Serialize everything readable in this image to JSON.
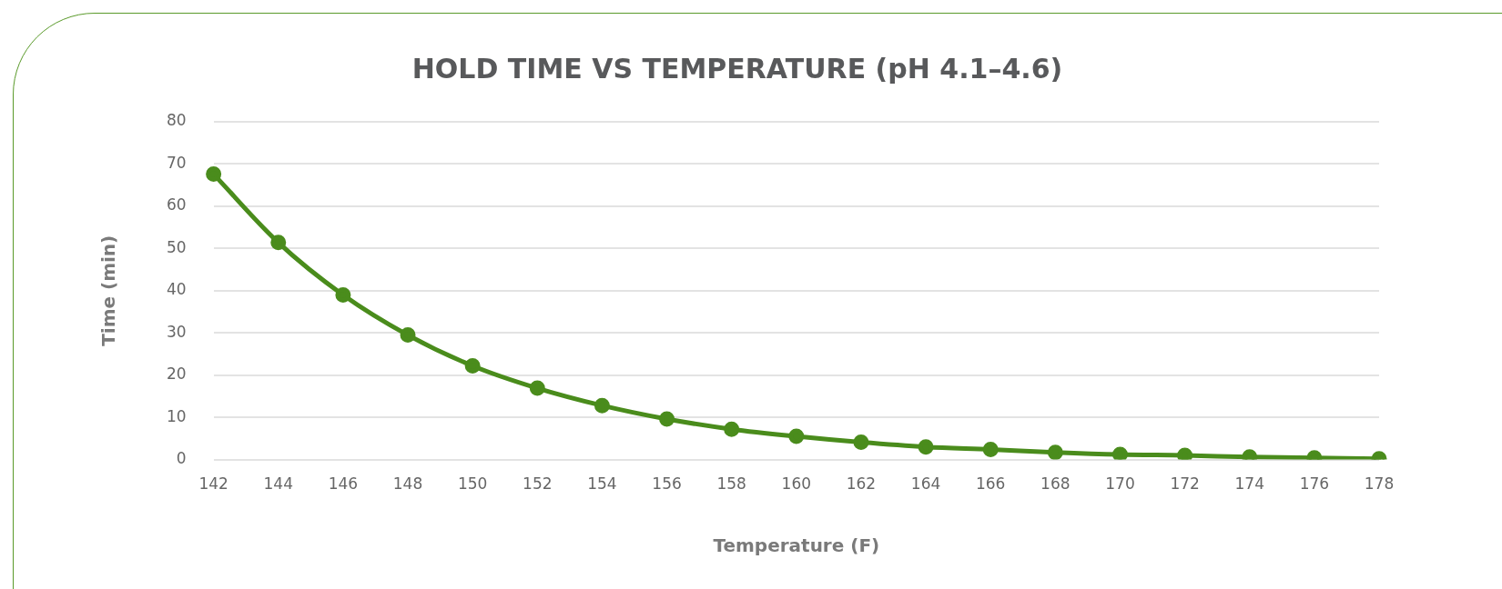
{
  "chart_data": {
    "type": "line",
    "title": "HOLD TIME VS TEMPERATURE (pH 4.1–4.6)",
    "xlabel": "Temperature (F)",
    "ylabel": "Time (min)",
    "categories": [
      "142",
      "144",
      "146",
      "148",
      "150",
      "152",
      "154",
      "156",
      "158",
      "160",
      "162",
      "164",
      "166",
      "168",
      "170",
      "172",
      "174",
      "176",
      "178"
    ],
    "series": [
      {
        "color": "#4a8c1c",
        "values": [
          67.6,
          51.4,
          39,
          29.5,
          22.2,
          16.9,
          12.8,
          9.6,
          7.2,
          5.5,
          4.1,
          3.0,
          2.4,
          1.7,
          1.2,
          1.0,
          0.6,
          0.4,
          0.2
        ]
      }
    ],
    "ylim": [
      0,
      80
    ],
    "yticks": [
      0,
      10,
      20,
      30,
      40,
      50,
      60,
      70,
      80
    ],
    "grid": "y",
    "marker": "circle",
    "line_style": "solid"
  }
}
